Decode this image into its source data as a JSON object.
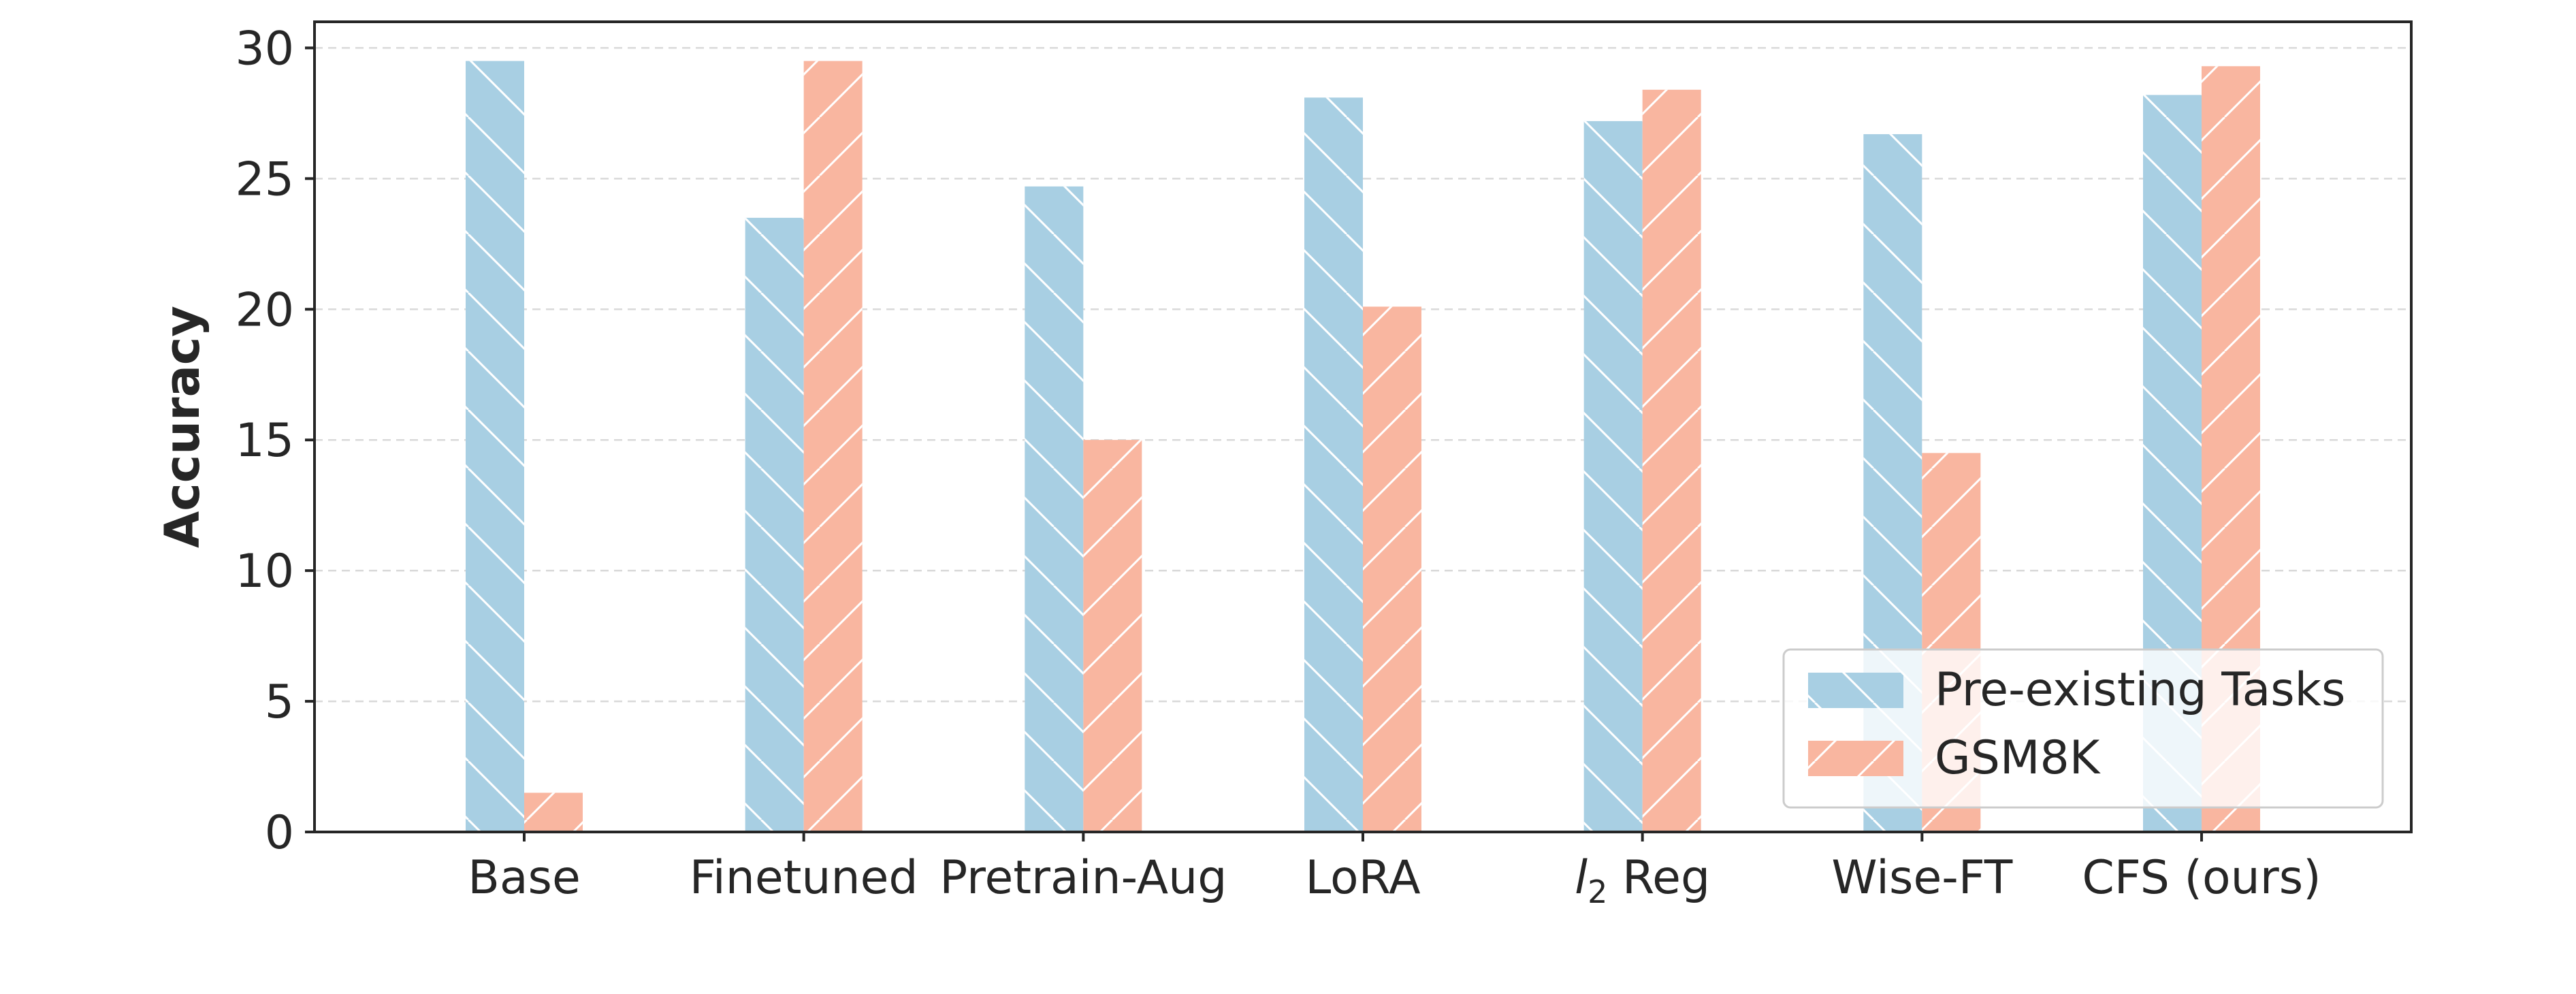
{
  "chart_data": {
    "type": "bar",
    "title": "",
    "xlabel": "",
    "ylabel": "Accuracy",
    "ylim": [
      0,
      31
    ],
    "yticks": [
      0,
      5,
      10,
      15,
      20,
      25,
      30
    ],
    "grid": "horizontal-dashed",
    "legend_position": "bottom-right",
    "categories": [
      "Base",
      "Finetuned",
      "Pretrain-Aug",
      "LoRA",
      "l2 Reg",
      "Wise-FT",
      "CFS (ours)"
    ],
    "series": [
      {
        "name": "Pre-existing Tasks",
        "color": "#a8cfe3",
        "hatch": "backslash",
        "values": [
          29.5,
          23.5,
          24.7,
          28.1,
          27.2,
          26.7,
          28.2
        ]
      },
      {
        "name": "GSM8K",
        "color": "#f9b6a0",
        "hatch": "slash",
        "values": [
          1.5,
          29.5,
          15.0,
          20.1,
          28.4,
          14.5,
          29.3
        ]
      }
    ]
  }
}
